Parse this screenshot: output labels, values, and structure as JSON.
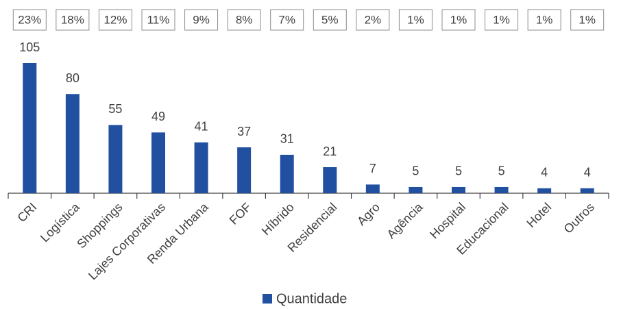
{
  "chart_data": {
    "type": "bar",
    "categories": [
      "CRI",
      "Logística",
      "Shoppings",
      "Lajes Corporativas",
      "Renda Urbana",
      "FOF",
      "Híbrido",
      "Residencial",
      "Agro",
      "Agência",
      "Hospital",
      "Educacional",
      "Hotel",
      "Outros"
    ],
    "series": [
      {
        "name": "Quantidade",
        "color": "#2150a0",
        "values": [
          105,
          80,
          55,
          49,
          41,
          37,
          31,
          21,
          7,
          5,
          5,
          5,
          4,
          4
        ]
      }
    ],
    "shares": [
      "23%",
      "18%",
      "12%",
      "11%",
      "9%",
      "8%",
      "7%",
      "5%",
      "2%",
      "1%",
      "1%",
      "1%",
      "1%",
      "1%"
    ],
    "legend": "bottom"
  }
}
